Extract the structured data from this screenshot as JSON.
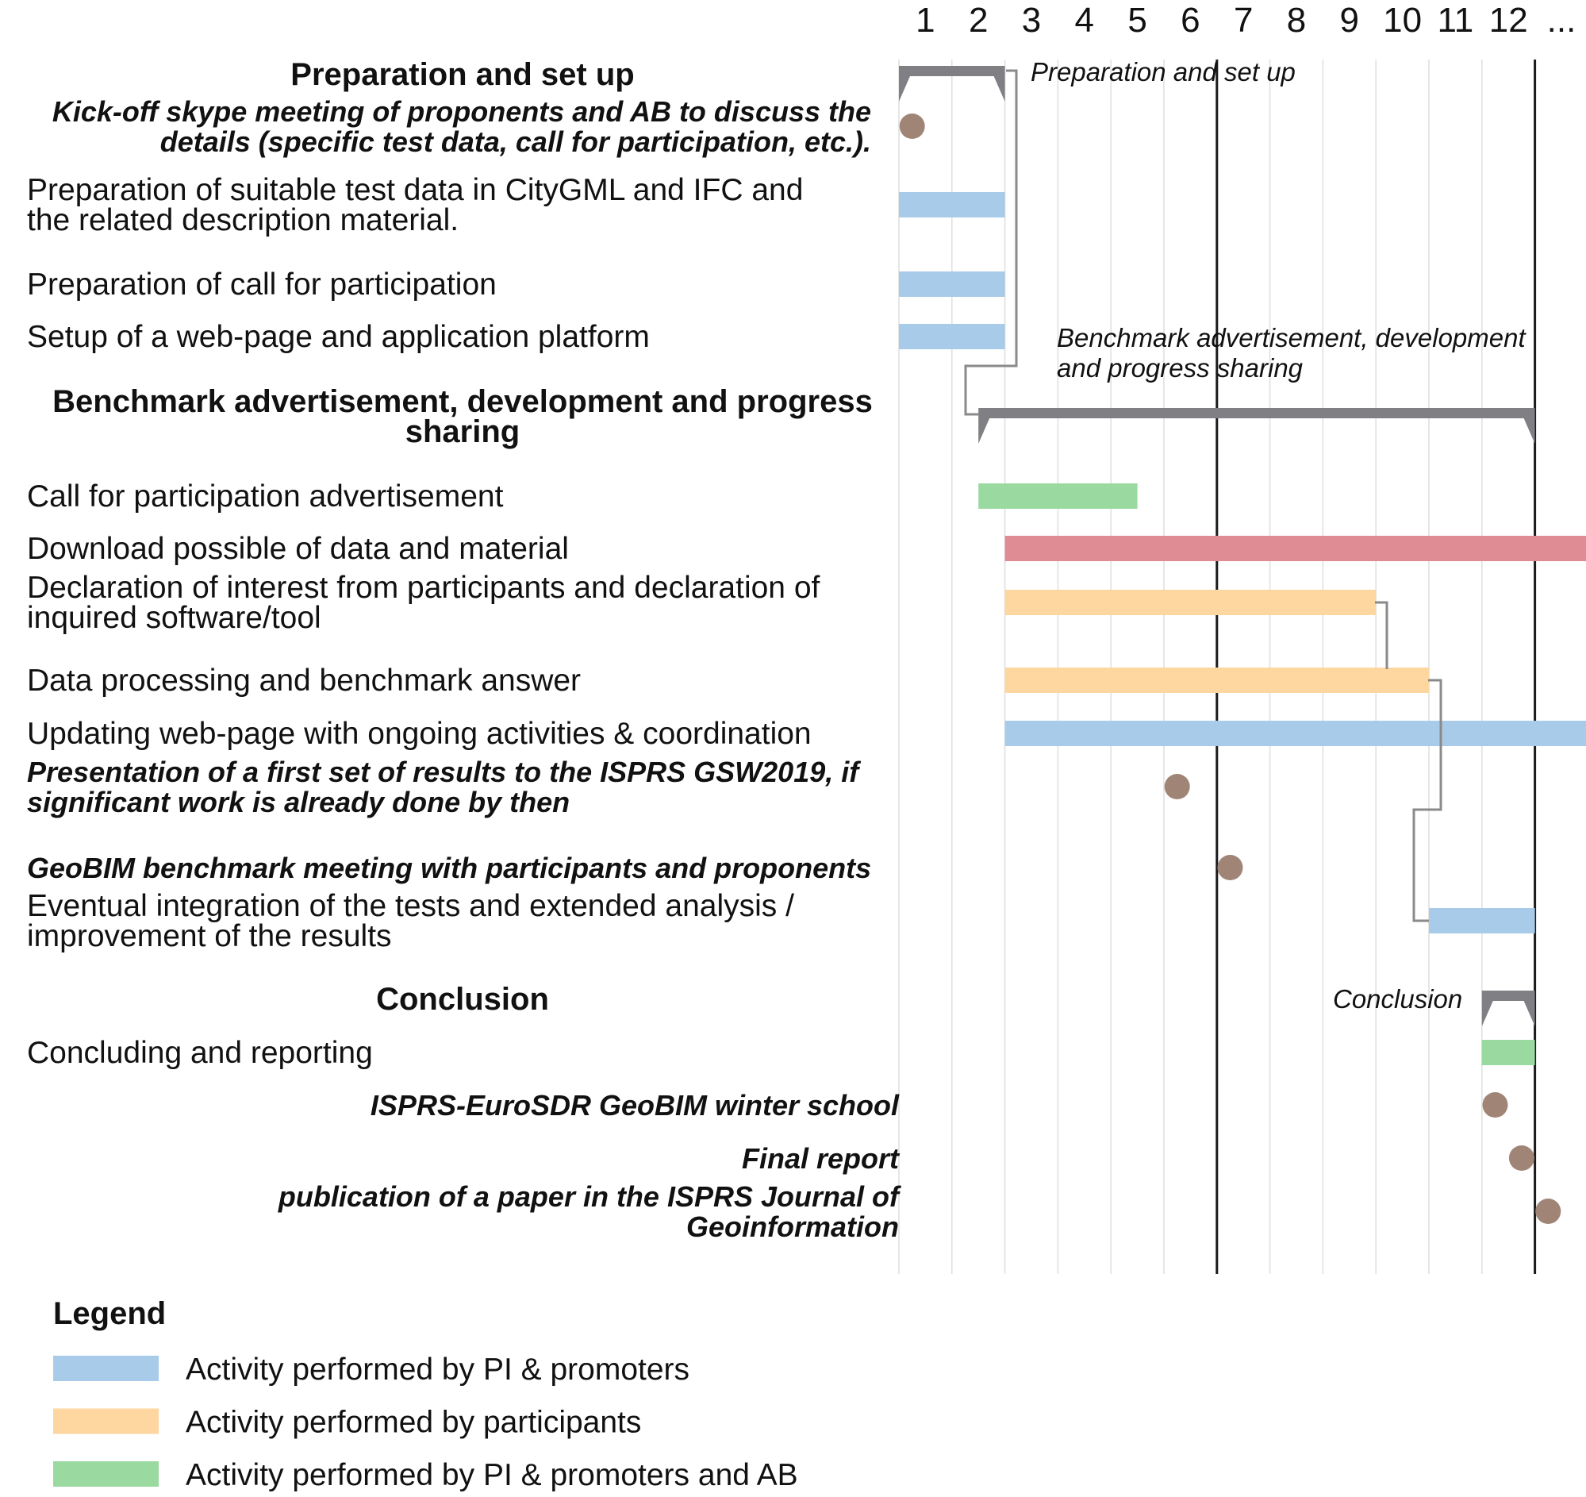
{
  "chart_data": {
    "type": "gantt",
    "time_axis": {
      "ticks": [
        "1",
        "2",
        "3",
        "4",
        "5",
        "6",
        "7",
        "8",
        "9",
        "10",
        "11",
        "12",
        "..."
      ],
      "range": [
        0,
        13
      ]
    },
    "categories": {
      "pi": {
        "label": "Activity performed by PI & promoters",
        "color": "#a9cbea"
      },
      "participants": {
        "label": "Activity performed by participants",
        "color": "#fdd6a0"
      },
      "pi_ab": {
        "label": "Activity performed by PI & promoters and AB",
        "color": "#9ad99f"
      },
      "download": {
        "label": "",
        "color": "#e08c94"
      },
      "milestone": {
        "label": "",
        "color": "#a08577"
      },
      "phase": {
        "label": "",
        "color": "#808084"
      }
    },
    "rows": [
      {
        "label": [
          "Preparation and set up"
        ],
        "style": "phase",
        "start": 0,
        "end": 2,
        "phase_label": [
          "Preparation and set up"
        ]
      },
      {
        "label": [
          "Kick-off skype meeting of proponents and AB to discuss the",
          "details (specific test data, call for participation, etc.)."
        ],
        "style": "milestone",
        "at": 0.25
      },
      {
        "label": [
          "Preparation of suitable test data in CityGML and IFC and",
          "the related description material."
        ],
        "style": "task",
        "category": "pi",
        "start": 0,
        "end": 2
      },
      {
        "label": [
          "Preparation of call for participation"
        ],
        "style": "task",
        "category": "pi",
        "start": 0,
        "end": 2
      },
      {
        "label": [
          "Setup of a web-page and application platform"
        ],
        "style": "task",
        "category": "pi",
        "start": 0,
        "end": 2
      },
      {
        "label": [
          "Benchmark advertisement, development and progress",
          "sharing"
        ],
        "style": "phase",
        "start": 1.5,
        "end": 12,
        "phase_label": [
          "Benchmark advertisement, development",
          "and progress sharing"
        ]
      },
      {
        "label": [
          "Call for participation advertisement"
        ],
        "style": "task",
        "category": "pi_ab",
        "start": 1.5,
        "end": 4.5
      },
      {
        "label": [
          "Download possible of data and material"
        ],
        "style": "task",
        "category": "download",
        "start": 2,
        "end": 13
      },
      {
        "label": [
          "Declaration of interest from participants and declaration of",
          "inquired software/tool"
        ],
        "style": "task",
        "category": "participants",
        "start": 2,
        "end": 9
      },
      {
        "label": [
          "Data processing and benchmark answer"
        ],
        "style": "task",
        "category": "participants",
        "start": 2,
        "end": 10
      },
      {
        "label": [
          "Updating web-page with ongoing activities & coordination"
        ],
        "style": "task",
        "category": "pi",
        "start": 2,
        "end": 13
      },
      {
        "label": [
          "Presentation of a first set of results to the ISPRS GSW2019, if",
          "significant work is already done by then"
        ],
        "style": "milestone",
        "at": 5.25
      },
      {
        "label": [
          "GeoBIM benchmark meeting with participants and proponents"
        ],
        "style": "milestone",
        "at": 6.25
      },
      {
        "label": [
          "Eventual integration of the tests and extended analysis /",
          "improvement of the results"
        ],
        "style": "task",
        "category": "pi",
        "start": 10,
        "end": 12
      },
      {
        "label": [
          "Conclusion"
        ],
        "style": "phase",
        "start": 11,
        "end": 12,
        "phase_label": [
          "Conclusion"
        ]
      },
      {
        "label": [
          "Concluding and reporting"
        ],
        "style": "task",
        "category": "pi_ab",
        "start": 11,
        "end": 12
      },
      {
        "label": [
          "ISPRS-EuroSDR GeoBIM winter school"
        ],
        "style": "milestone",
        "at": 11.25
      },
      {
        "label": [
          "Final report"
        ],
        "style": "milestone",
        "at": 11.75
      },
      {
        "label": [
          "publication of a paper in the ISPRS Journal of",
          "Geoinformation"
        ],
        "style": "milestone",
        "at": 12.25
      }
    ],
    "reference_lines": [
      6,
      12
    ],
    "legend_title": "Legend",
    "legend_order": [
      "pi",
      "participants",
      "pi_ab"
    ]
  }
}
